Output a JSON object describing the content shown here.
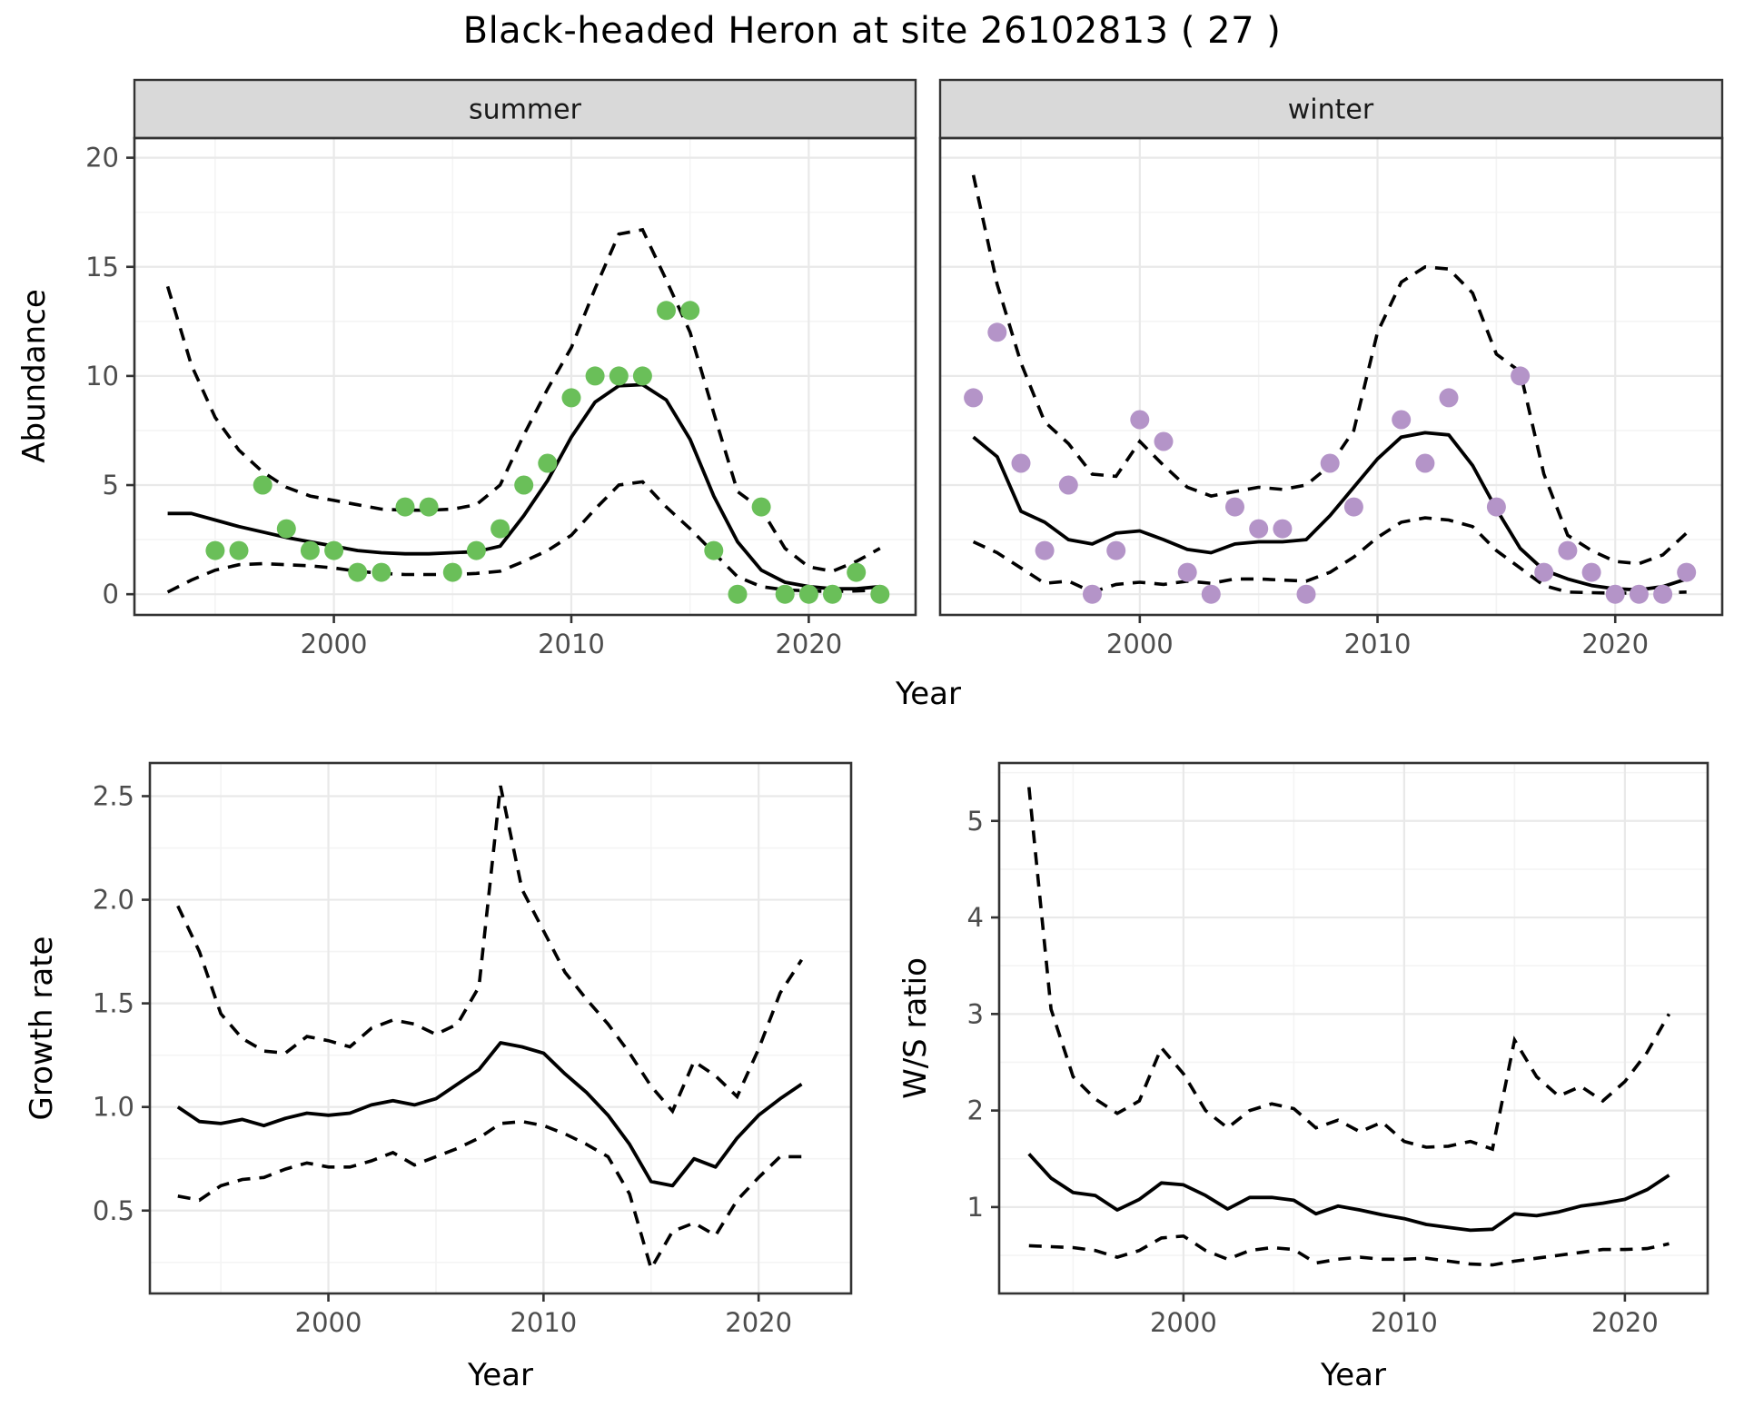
{
  "title": "Black-headed Heron at site 26102813 ( 27 )",
  "labels": {
    "abundance": "Abundance",
    "growth": "Growth rate",
    "ws": "W/S ratio",
    "year": "Year",
    "summer": "summer",
    "winter": "winter"
  },
  "colors": {
    "summer_point": "#6abf59",
    "winter_point": "#b494c8",
    "line": "#000000",
    "strip_bg": "#d9d9d9",
    "panel_border": "#333333",
    "grid_major": "#e9e9e9",
    "grid_minor": "#f4f4f4",
    "tick_mark": "#333333",
    "tick_label": "#4d4d4d",
    "panel_bg": "#ffffff"
  },
  "chart_data": [
    {
      "id": "abundance-summer",
      "type": "scatter",
      "facet_label": "summer",
      "xlabel": "Year",
      "ylabel": "Abundance",
      "xlim": [
        1991.6,
        2024.5
      ],
      "ylim": [
        -0.95,
        20.9
      ],
      "x_ticks": [
        2000,
        2010,
        2020
      ],
      "x_tick_labels": [
        "2000",
        "2010",
        "2020"
      ],
      "x_minor": [
        1995,
        2005,
        2015
      ],
      "y_ticks": [
        0,
        5,
        10,
        15,
        20
      ],
      "y_tick_labels": [
        "0",
        "5",
        "10",
        "15",
        "20"
      ],
      "y_minor": [
        2.5,
        7.5,
        12.5,
        17.5
      ],
      "points": {
        "years": [
          1995,
          1996,
          1997,
          1998,
          1999,
          2000,
          2001,
          2002,
          2003,
          2004,
          2005,
          2006,
          2007,
          2008,
          2009,
          2010,
          2011,
          2012,
          2013,
          2014,
          2015,
          2016,
          2017,
          2018,
          2019,
          2020,
          2021,
          2022,
          2023
        ],
        "values": [
          2,
          2,
          5,
          3,
          2,
          2,
          1,
          1,
          4,
          4,
          1,
          2,
          3,
          5,
          6,
          9,
          10,
          10,
          10,
          13,
          13,
          2,
          0,
          4,
          0,
          0,
          0,
          1,
          0
        ]
      },
      "fit": {
        "years": [
          1993,
          1994,
          1995,
          1996,
          1997,
          1998,
          1999,
          2000,
          2001,
          2002,
          2003,
          2004,
          2005,
          2006,
          2007,
          2008,
          2009,
          2010,
          2011,
          2012,
          2013,
          2014,
          2015,
          2016,
          2017,
          2018,
          2019,
          2020,
          2021,
          2022,
          2023
        ],
        "values": [
          3.7,
          3.7,
          3.4,
          3.1,
          2.85,
          2.6,
          2.4,
          2.2,
          2.0,
          1.9,
          1.85,
          1.85,
          1.9,
          1.95,
          2.2,
          3.6,
          5.2,
          7.2,
          8.8,
          9.55,
          9.6,
          8.9,
          7.1,
          4.5,
          2.4,
          1.1,
          0.55,
          0.35,
          0.25,
          0.25,
          0.35
        ]
      },
      "upper": {
        "years": [
          1993,
          1994,
          1995,
          1996,
          1997,
          1998,
          1999,
          2000,
          2001,
          2002,
          2003,
          2004,
          2005,
          2006,
          2007,
          2008,
          2009,
          2010,
          2011,
          2012,
          2013,
          2014,
          2015,
          2016,
          2017,
          2018,
          2019,
          2020,
          2021,
          2022,
          2023
        ],
        "values": [
          14.1,
          10.5,
          8.1,
          6.6,
          5.6,
          4.9,
          4.5,
          4.3,
          4.1,
          3.9,
          3.85,
          3.85,
          3.9,
          4.1,
          5.0,
          7.3,
          9.4,
          11.3,
          14.0,
          16.5,
          16.7,
          14.4,
          12.0,
          8.3,
          4.7,
          3.9,
          2.1,
          1.25,
          1.05,
          1.5,
          2.1
        ]
      },
      "lower": {
        "years": [
          1993,
          1994,
          1995,
          1996,
          1997,
          1998,
          1999,
          2000,
          2001,
          2002,
          2003,
          2004,
          2005,
          2006,
          2007,
          2008,
          2009,
          2010,
          2011,
          2012,
          2013,
          2014,
          2015,
          2016,
          2017,
          2018,
          2019,
          2020,
          2021,
          2022,
          2023
        ],
        "values": [
          0.1,
          0.65,
          1.1,
          1.35,
          1.4,
          1.35,
          1.3,
          1.2,
          1.05,
          0.95,
          0.9,
          0.9,
          0.9,
          0.95,
          1.05,
          1.5,
          2.0,
          2.7,
          3.9,
          5.0,
          5.15,
          4.0,
          3.0,
          1.9,
          0.8,
          0.35,
          0.2,
          0.15,
          0.12,
          0.15,
          0.2
        ]
      }
    },
    {
      "id": "abundance-winter",
      "type": "scatter",
      "facet_label": "winter",
      "xlabel": "Year",
      "ylabel": "Abundance",
      "xlim": [
        1991.6,
        2024.5
      ],
      "ylim": [
        -0.95,
        20.9
      ],
      "x_ticks": [
        2000,
        2010,
        2020
      ],
      "x_tick_labels": [
        "2000",
        "2010",
        "2020"
      ],
      "x_minor": [
        1995,
        2005,
        2015
      ],
      "y_ticks": [
        0,
        5,
        10,
        15,
        20
      ],
      "y_tick_labels": [
        "0",
        "5",
        "10",
        "15",
        "20"
      ],
      "y_minor": [
        2.5,
        7.5,
        12.5,
        17.5
      ],
      "points": {
        "years": [
          1993,
          1994,
          1995,
          1996,
          1997,
          1998,
          1999,
          2000,
          2001,
          2002,
          2003,
          2004,
          2005,
          2006,
          2007,
          2008,
          2009,
          2011,
          2012,
          2013,
          2015,
          2016,
          2017,
          2018,
          2019,
          2020,
          2021,
          2022,
          2023
        ],
        "values": [
          9,
          12,
          6,
          2,
          5,
          0,
          2,
          8,
          7,
          1,
          0,
          4,
          3,
          3,
          0,
          6,
          4,
          8,
          6,
          9,
          4,
          10,
          1,
          2,
          1,
          0,
          0,
          0,
          1
        ]
      },
      "fit": {
        "years": [
          1993,
          1994,
          1995,
          1996,
          1997,
          1998,
          1999,
          2000,
          2001,
          2002,
          2003,
          2004,
          2005,
          2006,
          2007,
          2008,
          2009,
          2010,
          2011,
          2012,
          2013,
          2014,
          2015,
          2016,
          2017,
          2018,
          2019,
          2020,
          2021,
          2022,
          2023
        ],
        "values": [
          7.2,
          6.3,
          3.8,
          3.3,
          2.5,
          2.3,
          2.8,
          2.9,
          2.5,
          2.05,
          1.9,
          2.3,
          2.4,
          2.4,
          2.5,
          3.6,
          4.9,
          6.2,
          7.2,
          7.4,
          7.3,
          5.9,
          3.9,
          2.1,
          1.1,
          0.7,
          0.4,
          0.25,
          0.2,
          0.35,
          0.7
        ]
      },
      "upper": {
        "years": [
          1993,
          1994,
          1995,
          1996,
          1997,
          1998,
          1999,
          2000,
          2001,
          2002,
          2003,
          2004,
          2005,
          2006,
          2007,
          2008,
          2009,
          2010,
          2011,
          2012,
          2013,
          2014,
          2015,
          2016,
          2017,
          2018,
          2019,
          2020,
          2021,
          2022,
          2023
        ],
        "values": [
          19.2,
          14.2,
          10.6,
          7.9,
          6.9,
          5.5,
          5.4,
          7.0,
          5.9,
          4.9,
          4.5,
          4.7,
          4.9,
          4.8,
          5.0,
          5.9,
          7.5,
          12.0,
          14.3,
          15.0,
          14.9,
          13.8,
          11.0,
          10.2,
          5.5,
          2.7,
          2.0,
          1.5,
          1.4,
          1.8,
          2.8
        ]
      },
      "lower": {
        "years": [
          1993,
          1994,
          1995,
          1996,
          1997,
          1998,
          1999,
          2000,
          2001,
          2002,
          2003,
          2004,
          2005,
          2006,
          2007,
          2008,
          2009,
          2010,
          2011,
          2012,
          2013,
          2014,
          2015,
          2016,
          2017,
          2018,
          2019,
          2020,
          2021,
          2022,
          2023
        ],
        "values": [
          2.4,
          1.9,
          1.2,
          0.5,
          0.6,
          0.1,
          0.45,
          0.55,
          0.45,
          0.6,
          0.5,
          0.7,
          0.7,
          0.65,
          0.6,
          1.0,
          1.7,
          2.6,
          3.3,
          3.5,
          3.4,
          3.1,
          2.0,
          1.2,
          0.4,
          0.1,
          0.07,
          0.05,
          0.05,
          0.07,
          0.1
        ]
      }
    },
    {
      "id": "growth",
      "type": "line",
      "facet_label": null,
      "xlabel": "Year",
      "ylabel": "Growth rate",
      "xlim": [
        1991.7,
        2024.3
      ],
      "ylim": [
        0.1,
        2.66
      ],
      "x_ticks": [
        2000,
        2010,
        2020
      ],
      "x_tick_labels": [
        "2000",
        "2010",
        "2020"
      ],
      "x_minor": [
        1995,
        2005,
        2015
      ],
      "y_ticks": [
        0.5,
        1.0,
        1.5,
        2.0,
        2.5
      ],
      "y_tick_labels": [
        "0.5",
        "1.0",
        "1.5",
        "2.0",
        "2.5"
      ],
      "y_minor": [
        0.25,
        0.75,
        1.25,
        1.75,
        2.25
      ],
      "points": null,
      "fit": {
        "years": [
          1993,
          1994,
          1995,
          1996,
          1997,
          1998,
          1999,
          2000,
          2001,
          2002,
          2003,
          2004,
          2005,
          2006,
          2007,
          2008,
          2009,
          2010,
          2011,
          2012,
          2013,
          2014,
          2015,
          2016,
          2017,
          2018,
          2019,
          2020,
          2021,
          2022
        ],
        "values": [
          1.0,
          0.93,
          0.92,
          0.94,
          0.91,
          0.945,
          0.97,
          0.96,
          0.97,
          1.01,
          1.03,
          1.01,
          1.04,
          1.11,
          1.18,
          1.31,
          1.29,
          1.26,
          1.16,
          1.07,
          0.96,
          0.82,
          0.64,
          0.62,
          0.75,
          0.71,
          0.85,
          0.96,
          1.04,
          1.11
        ]
      },
      "upper": {
        "years": [
          1993,
          1994,
          1995,
          1996,
          1997,
          1998,
          1999,
          2000,
          2001,
          2002,
          2003,
          2004,
          2005,
          2006,
          2007,
          2008,
          2009,
          2010,
          2011,
          2012,
          2013,
          2014,
          2015,
          2016,
          2017,
          2018,
          2019,
          2020,
          2021,
          2022
        ],
        "values": [
          1.97,
          1.75,
          1.45,
          1.33,
          1.27,
          1.26,
          1.34,
          1.32,
          1.29,
          1.38,
          1.42,
          1.4,
          1.35,
          1.4,
          1.58,
          2.55,
          2.05,
          1.85,
          1.65,
          1.52,
          1.4,
          1.26,
          1.1,
          0.98,
          1.22,
          1.15,
          1.05,
          1.28,
          1.55,
          1.71
        ]
      },
      "lower": {
        "years": [
          1993,
          1994,
          1995,
          1996,
          1997,
          1998,
          1999,
          2000,
          2001,
          2002,
          2003,
          2004,
          2005,
          2006,
          2007,
          2008,
          2009,
          2010,
          2011,
          2012,
          2013,
          2014,
          2015,
          2016,
          2017,
          2018,
          2019,
          2020,
          2021,
          2022
        ],
        "values": [
          0.57,
          0.55,
          0.62,
          0.65,
          0.66,
          0.7,
          0.73,
          0.71,
          0.71,
          0.74,
          0.78,
          0.72,
          0.76,
          0.8,
          0.85,
          0.92,
          0.93,
          0.91,
          0.87,
          0.82,
          0.76,
          0.58,
          0.22,
          0.4,
          0.44,
          0.38,
          0.55,
          0.66,
          0.76,
          0.76
        ]
      }
    },
    {
      "id": "ws",
      "type": "line",
      "facet_label": null,
      "xlabel": "Year",
      "ylabel": "W/S ratio",
      "xlim": [
        1991.65,
        2023.75
      ],
      "ylim": [
        0.105,
        5.6
      ],
      "x_ticks": [
        2000,
        2010,
        2020
      ],
      "x_tick_labels": [
        "2000",
        "2010",
        "2020"
      ],
      "x_minor": [
        1995,
        2005,
        2015
      ],
      "y_ticks": [
        1,
        2,
        3,
        4,
        5
      ],
      "y_tick_labels": [
        "1",
        "2",
        "3",
        "4",
        "5"
      ],
      "y_minor": [
        0.5,
        1.5,
        2.5,
        3.5,
        4.5,
        5.5
      ],
      "points": null,
      "fit": {
        "years": [
          1993,
          1994,
          1995,
          1996,
          1997,
          1998,
          1999,
          2000,
          2001,
          2002,
          2003,
          2004,
          2005,
          2006,
          2007,
          2008,
          2009,
          2010,
          2011,
          2012,
          2013,
          2014,
          2015,
          2016,
          2017,
          2018,
          2019,
          2020,
          2021,
          2022
        ],
        "values": [
          1.55,
          1.3,
          1.15,
          1.12,
          0.97,
          1.08,
          1.25,
          1.23,
          1.12,
          0.98,
          1.1,
          1.1,
          1.07,
          0.93,
          1.01,
          0.97,
          0.92,
          0.88,
          0.82,
          0.79,
          0.76,
          0.77,
          0.93,
          0.91,
          0.95,
          1.01,
          1.04,
          1.08,
          1.18,
          1.33
        ]
      },
      "upper": {
        "years": [
          1993,
          1994,
          1995,
          1996,
          1997,
          1998,
          1999,
          2000,
          2001,
          2002,
          2003,
          2004,
          2005,
          2006,
          2007,
          2008,
          2009,
          2010,
          2011,
          2012,
          2013,
          2014,
          2015,
          2016,
          2017,
          2018,
          2019,
          2020,
          2021,
          2022
        ],
        "values": [
          5.35,
          3.05,
          2.35,
          2.12,
          1.97,
          2.1,
          2.65,
          2.38,
          2.0,
          1.82,
          2.0,
          2.07,
          2.02,
          1.82,
          1.9,
          1.78,
          1.88,
          1.68,
          1.62,
          1.63,
          1.68,
          1.6,
          2.73,
          2.35,
          2.15,
          2.25,
          2.1,
          2.3,
          2.6,
          3.0
        ]
      },
      "lower": {
        "years": [
          1993,
          1994,
          1995,
          1996,
          1997,
          1998,
          1999,
          2000,
          2001,
          2002,
          2003,
          2004,
          2005,
          2006,
          2007,
          2008,
          2009,
          2010,
          2011,
          2012,
          2013,
          2014,
          2015,
          2016,
          2017,
          2018,
          2019,
          2020,
          2021,
          2022
        ],
        "values": [
          0.6,
          0.59,
          0.58,
          0.55,
          0.48,
          0.55,
          0.68,
          0.7,
          0.55,
          0.46,
          0.55,
          0.58,
          0.56,
          0.42,
          0.46,
          0.48,
          0.46,
          0.46,
          0.47,
          0.44,
          0.41,
          0.4,
          0.44,
          0.47,
          0.5,
          0.53,
          0.56,
          0.56,
          0.57,
          0.62
        ]
      }
    }
  ]
}
